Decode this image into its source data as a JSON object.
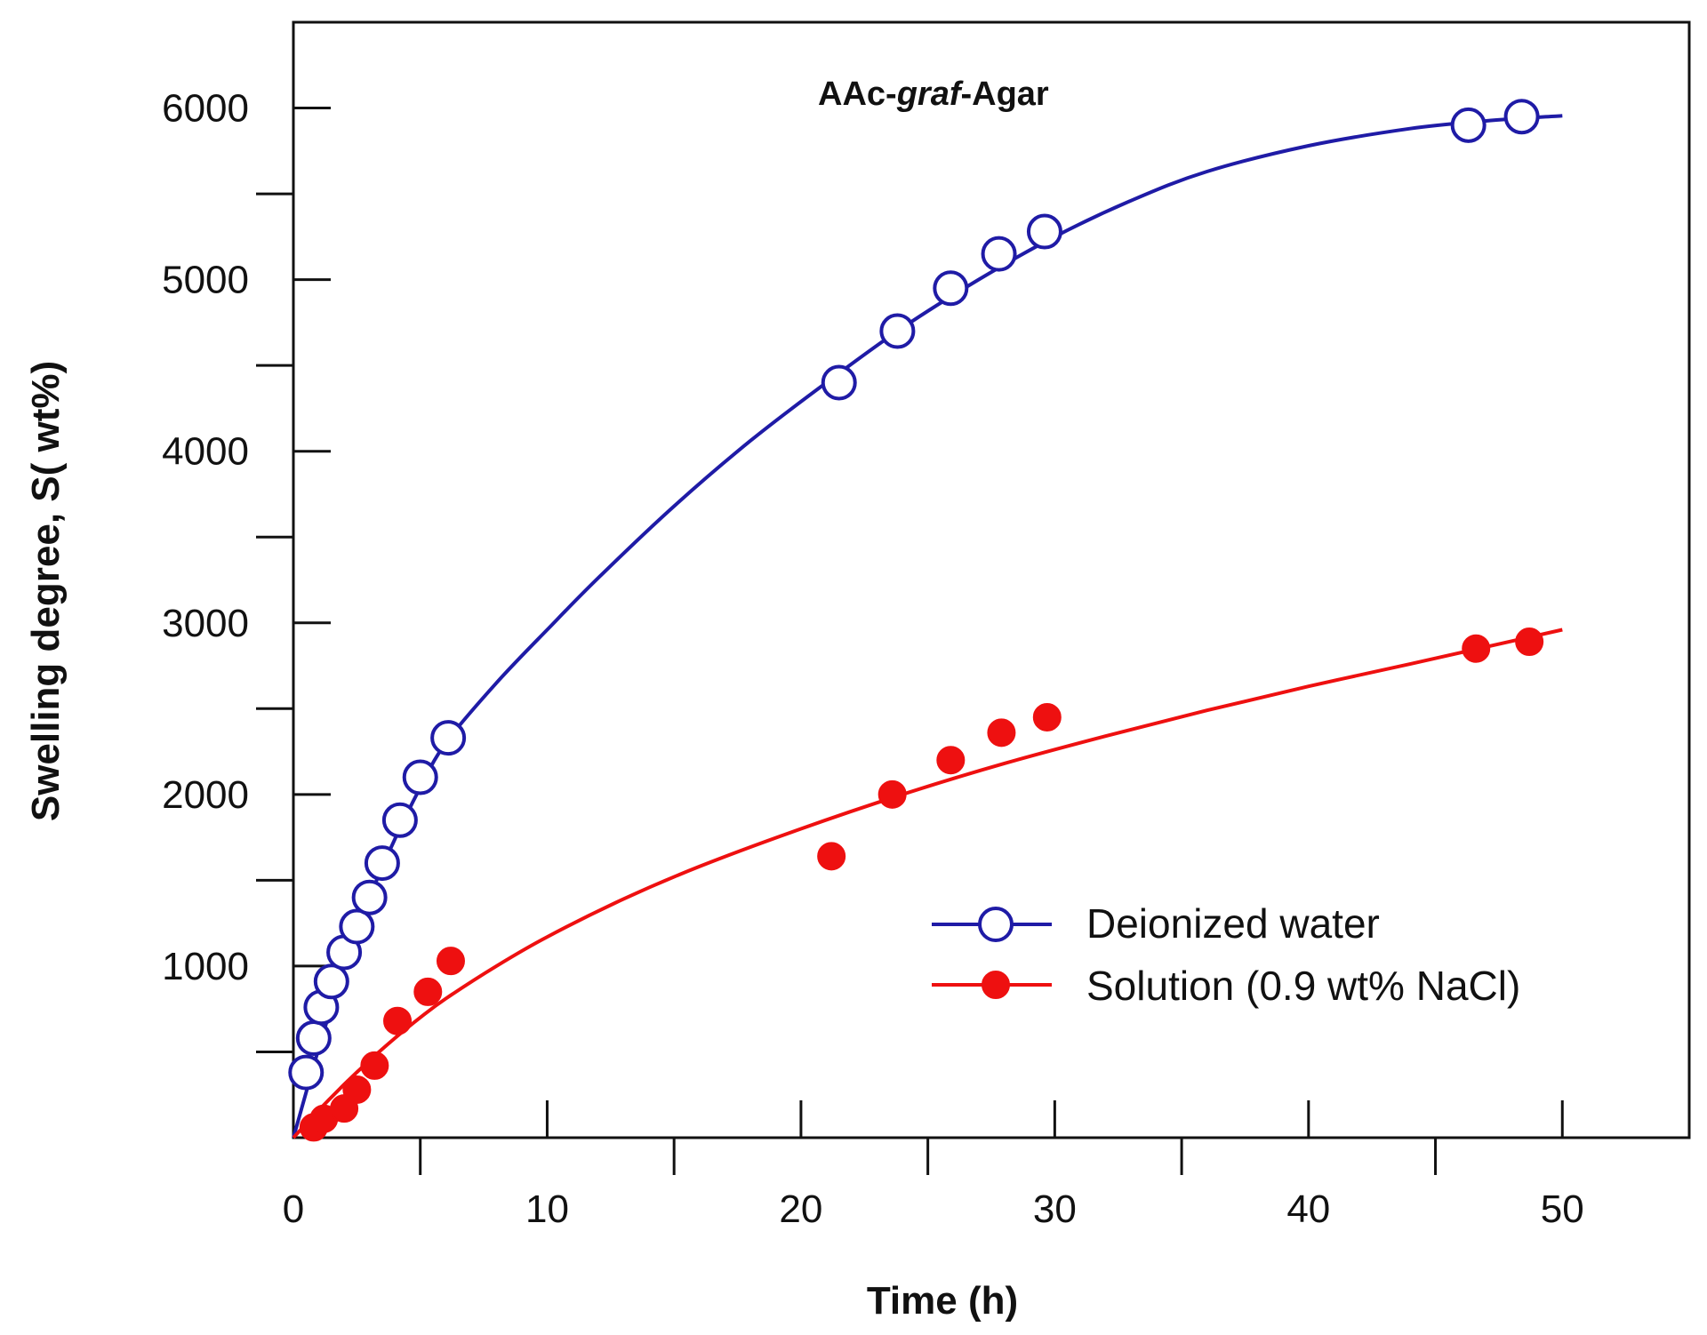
{
  "chart_data": {
    "type": "scatter",
    "title_parts": [
      "AAc-",
      "graf",
      "-Agar"
    ],
    "xlabel": "Time (h)",
    "ylabel": "Swelling degree, S( wt%)",
    "xlim": [
      0,
      55
    ],
    "ylim": [
      0,
      6500
    ],
    "x_ticks": [
      0,
      10,
      20,
      30,
      40,
      50
    ],
    "x_tick_labels": [
      "0",
      "10",
      "20",
      "30",
      "40",
      "50"
    ],
    "x_minor_ticks": [
      5,
      15,
      25,
      35,
      45
    ],
    "y_ticks": [
      1000,
      2000,
      3000,
      4000,
      5000,
      6000
    ],
    "y_tick_labels": [
      "1000",
      "2000",
      "3000",
      "4000",
      "5000",
      "6000"
    ],
    "y_minor_ticks": [
      500,
      1500,
      2500,
      3500,
      4500,
      5500
    ],
    "legend_position": "bottom-right",
    "series": [
      {
        "name": "Deionized water",
        "color": "#1f1ba6",
        "marker": "open-circle",
        "x": [
          0.5,
          0.8,
          1.1,
          1.5,
          2.0,
          2.5,
          3.0,
          3.5,
          4.2,
          5.0,
          6.1,
          21.5,
          23.8,
          25.9,
          27.8,
          29.6,
          46.3,
          48.4
        ],
        "y": [
          380,
          580,
          760,
          910,
          1080,
          1230,
          1400,
          1600,
          1850,
          2100,
          2330,
          4400,
          4700,
          4950,
          5150,
          5280,
          5900,
          5950
        ],
        "fit_x": [
          0,
          1,
          2,
          3,
          4,
          5,
          6,
          8,
          10,
          12,
          15,
          18,
          21,
          24,
          27,
          30,
          33,
          36,
          40,
          44,
          47,
          50
        ],
        "fit_y": [
          0,
          520,
          1000,
          1400,
          1740,
          2040,
          2300,
          2650,
          2960,
          3260,
          3680,
          4060,
          4400,
          4720,
          5000,
          5250,
          5460,
          5630,
          5780,
          5880,
          5925,
          5955
        ]
      },
      {
        "name": "Solution (0.9 wt% NaCl)",
        "color": "#ee1010",
        "marker": "filled-circle",
        "x": [
          0.8,
          1.2,
          2.0,
          2.5,
          3.2,
          4.1,
          5.3,
          6.2,
          21.2,
          23.6,
          25.9,
          27.9,
          29.7,
          46.6,
          48.7
        ],
        "y": [
          60,
          110,
          170,
          280,
          420,
          680,
          850,
          1030,
          1640,
          2000,
          2200,
          2360,
          2450,
          2850,
          2890
        ],
        "fit_x": [
          0,
          1,
          2,
          3,
          4,
          5,
          6,
          8,
          10,
          13,
          16,
          20,
          24,
          28,
          32,
          36,
          40,
          44,
          47,
          50
        ],
        "fit_y": [
          0,
          160,
          310,
          450,
          580,
          700,
          810,
          1000,
          1170,
          1390,
          1580,
          1800,
          2000,
          2180,
          2340,
          2490,
          2630,
          2760,
          2860,
          2960
        ]
      }
    ]
  }
}
